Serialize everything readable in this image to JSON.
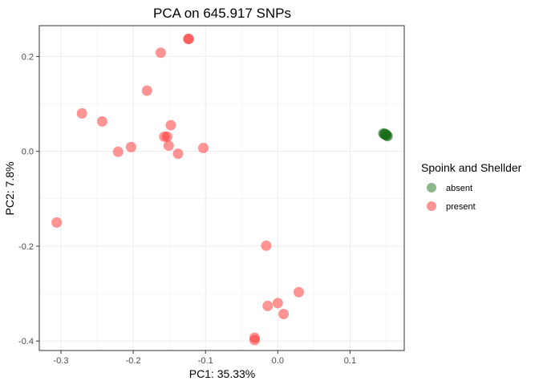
{
  "chart_data": {
    "type": "scatter",
    "title": "PCA on 645.917 SNPs",
    "xlabel": "PC1: 35.33%",
    "ylabel": "PC2: 7.8%",
    "xlim": [
      -0.33,
      0.175
    ],
    "ylim": [
      -0.42,
      0.265
    ],
    "x_ticks": [
      -0.3,
      -0.2,
      -0.1,
      0.0,
      0.1
    ],
    "x_tick_labels": [
      "-0.3",
      "-0.2",
      "-0.1",
      "0.0",
      "0.1"
    ],
    "y_ticks": [
      -0.4,
      -0.2,
      0.0,
      0.2
    ],
    "y_tick_labels": [
      "-0.4",
      "-0.2",
      "0.0",
      "0.2"
    ],
    "grid": true,
    "legend": {
      "title": "Spoink and Shellder",
      "placement": "right"
    },
    "series": [
      {
        "name": "absent",
        "color": "#1a6e1a",
        "points": [
          [
            0.146,
            0.038
          ],
          [
            0.148,
            0.037
          ],
          [
            0.149,
            0.035
          ],
          [
            0.15,
            0.034
          ],
          [
            0.151,
            0.033
          ],
          [
            0.152,
            0.032
          ],
          [
            0.147,
            0.036
          ],
          [
            0.15,
            0.036
          ]
        ]
      },
      {
        "name": "present",
        "color": "#ff2a2a",
        "points": [
          [
            -0.123,
            0.237
          ],
          [
            -0.124,
            0.237
          ],
          [
            -0.162,
            0.208
          ],
          [
            -0.181,
            0.128
          ],
          [
            -0.271,
            0.08
          ],
          [
            -0.243,
            0.063
          ],
          [
            -0.148,
            0.055
          ],
          [
            -0.157,
            0.031
          ],
          [
            -0.153,
            0.031
          ],
          [
            -0.203,
            0.009
          ],
          [
            -0.151,
            0.012
          ],
          [
            -0.221,
            -0.001
          ],
          [
            -0.138,
            -0.005
          ],
          [
            -0.103,
            0.007
          ],
          [
            -0.306,
            -0.15
          ],
          [
            -0.016,
            -0.199
          ],
          [
            -0.014,
            -0.326
          ],
          [
            0.0,
            -0.32
          ],
          [
            0.029,
            -0.297
          ],
          [
            0.008,
            -0.343
          ],
          [
            -0.032,
            -0.393
          ],
          [
            -0.032,
            -0.398
          ]
        ]
      }
    ]
  }
}
